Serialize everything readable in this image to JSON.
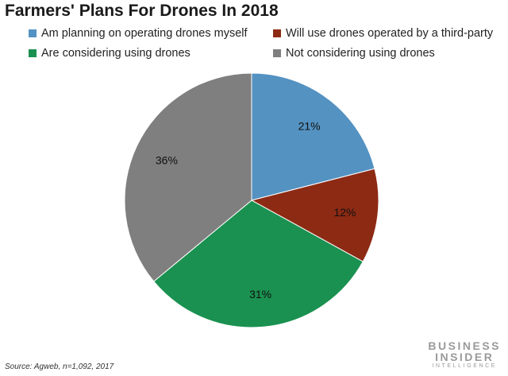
{
  "chart_data": {
    "type": "pie",
    "title": "Farmers' Plans For Drones In 2018",
    "categories": [
      "Am planning on operating drones myself",
      "Will use drones operated by a third-party",
      "Are considering using drones",
      "Not considering using drones"
    ],
    "values": [
      21,
      12,
      31,
      36
    ],
    "labels": [
      "21%",
      "12%",
      "31%",
      "36%"
    ],
    "colors": [
      "#5492c2",
      "#8d2a14",
      "#1a9150",
      "#7f7f7f"
    ],
    "legend_position": "top",
    "start": "top, clockwise"
  },
  "footer": {
    "source": "Source: Agweb, n=1,092, 2017",
    "brand_line1": "BUSINESS",
    "brand_line2": "INSIDER",
    "brand_line3": "INTELLIGENCE"
  }
}
